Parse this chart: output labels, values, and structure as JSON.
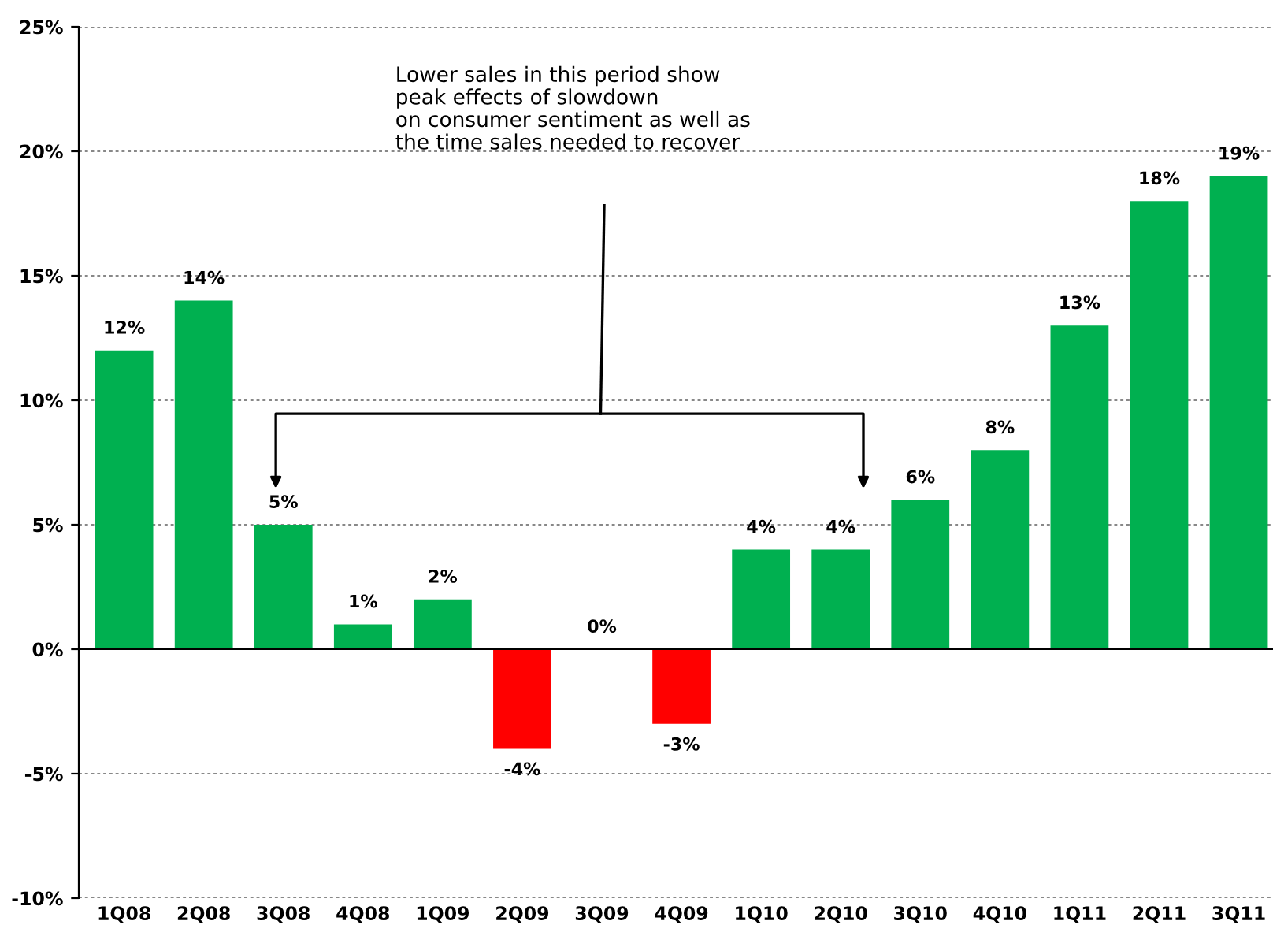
{
  "chart_data": {
    "type": "bar",
    "categories": [
      "1Q08",
      "2Q08",
      "3Q08",
      "4Q08",
      "1Q09",
      "2Q09",
      "3Q09",
      "4Q09",
      "1Q10",
      "2Q10",
      "3Q10",
      "4Q10",
      "1Q11",
      "2Q11",
      "3Q11"
    ],
    "values": [
      12,
      14,
      5,
      1,
      2,
      -4,
      0,
      -3,
      4,
      4,
      6,
      8,
      13,
      18,
      19
    ],
    "colors": [
      "#00b050",
      "#00b050",
      "#00b050",
      "#00b050",
      "#00b050",
      "#ff0000",
      "#00b050",
      "#ff0000",
      "#00b050",
      "#00b050",
      "#00b050",
      "#00b050",
      "#00b050",
      "#00b050",
      "#00b050"
    ],
    "value_labels": [
      "12%",
      "14%",
      "5%",
      "1%",
      "2%",
      "-4%",
      "0%",
      "-3%",
      "4%",
      "4%",
      "6%",
      "8%",
      "13%",
      "18%",
      "19%"
    ],
    "ylim": [
      -10,
      25
    ],
    "yticks": [
      {
        "value": -10,
        "label": "-10%"
      },
      {
        "value": -5,
        "label": "-5%"
      },
      {
        "value": 0,
        "label": "0%"
      },
      {
        "value": 5,
        "label": "5%"
      },
      {
        "value": 10,
        "label": "10%"
      },
      {
        "value": 15,
        "label": "15%"
      },
      {
        "value": 20,
        "label": "20%"
      },
      {
        "value": 25,
        "label": "25%"
      }
    ],
    "grid": "y",
    "legend": false,
    "annotations": [
      "Lower sales in this period show\npeak effects of slowdown\non consumer sentiment as well as\nthe time sales needed to recover"
    ]
  }
}
